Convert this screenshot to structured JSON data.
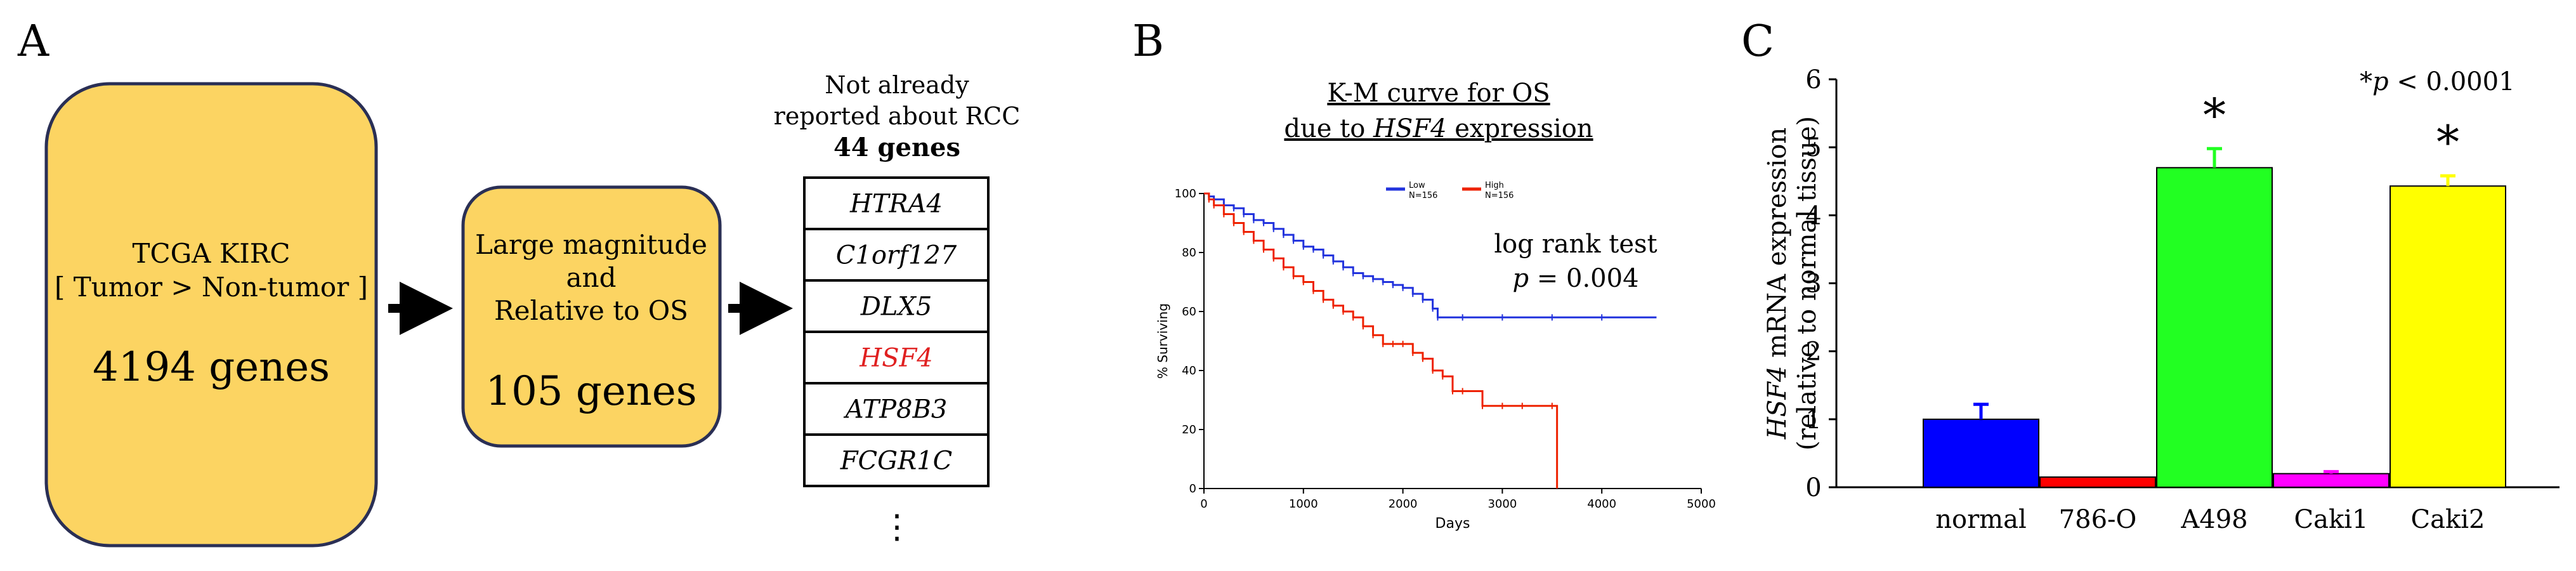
{
  "panel_a": {
    "label": "A",
    "box1": {
      "line1": "TCGA KIRC",
      "line2": "[ Tumor > Non-tumor ]",
      "count": "4194 genes"
    },
    "box2": {
      "line1": "Large magnitude",
      "line2": "and",
      "line3": "Relative to OS",
      "count": "105 genes"
    },
    "list_header": {
      "line1": "Not already",
      "line2": "reported about RCC",
      "count": "44 genes"
    },
    "genes": [
      "HTRA4",
      "C1orf127",
      "DLX5",
      "HSF4",
      "ATP8B3",
      "FCGR1C"
    ],
    "highlight_gene": "HSF4",
    "ellipsis": "⋮",
    "colors": {
      "box_fill": "#fcd462",
      "box_stroke": "#2a2f55",
      "highlight": "#e02020"
    }
  },
  "chart_data": [
    {
      "type": "line",
      "panel": "B",
      "title_line1": "K-M curve for OS",
      "title_line2_prefix": "due to ",
      "title_line2_gene": "HSF4",
      "title_line2_suffix": " expression",
      "xlabel": "Days",
      "ylabel": "% Surviving",
      "xlim": [
        0,
        5000
      ],
      "ylim": [
        0,
        100
      ],
      "xticks": [
        0,
        1000,
        2000,
        3000,
        4000,
        5000
      ],
      "yticks": [
        0,
        20,
        40,
        60,
        80,
        100
      ],
      "legend": [
        {
          "name": "Low",
          "n": "N=156",
          "color": "#2233dd"
        },
        {
          "name": "High",
          "n": "N=156",
          "color": "#ee2200"
        }
      ],
      "annotation_line1": "log rank test",
      "annotation_line2": "p = 0.004",
      "series": [
        {
          "name": "Low",
          "color": "#2233dd",
          "points": [
            [
              0,
              100
            ],
            [
              50,
              99
            ],
            [
              100,
              98
            ],
            [
              200,
              96
            ],
            [
              300,
              95
            ],
            [
              400,
              93
            ],
            [
              500,
              91
            ],
            [
              600,
              90
            ],
            [
              700,
              88
            ],
            [
              800,
              86
            ],
            [
              900,
              84
            ],
            [
              1000,
              82
            ],
            [
              1100,
              81
            ],
            [
              1200,
              79
            ],
            [
              1300,
              77
            ],
            [
              1400,
              75
            ],
            [
              1500,
              73
            ],
            [
              1600,
              72
            ],
            [
              1700,
              71
            ],
            [
              1800,
              70
            ],
            [
              1900,
              69
            ],
            [
              2000,
              68
            ],
            [
              2100,
              66
            ],
            [
              2200,
              64
            ],
            [
              2300,
              61
            ],
            [
              2350,
              58
            ],
            [
              2600,
              58
            ],
            [
              3000,
              58
            ],
            [
              3500,
              58
            ],
            [
              4000,
              58
            ],
            [
              4550,
              58
            ]
          ]
        },
        {
          "name": "High",
          "color": "#ee2200",
          "points": [
            [
              0,
              100
            ],
            [
              50,
              98
            ],
            [
              100,
              96
            ],
            [
              200,
              93
            ],
            [
              300,
              90
            ],
            [
              400,
              87
            ],
            [
              500,
              84
            ],
            [
              600,
              81
            ],
            [
              700,
              78
            ],
            [
              800,
              75
            ],
            [
              900,
              72
            ],
            [
              1000,
              70
            ],
            [
              1100,
              67
            ],
            [
              1200,
              64
            ],
            [
              1300,
              62
            ],
            [
              1400,
              60
            ],
            [
              1500,
              58
            ],
            [
              1600,
              55
            ],
            [
              1700,
              52
            ],
            [
              1800,
              49
            ],
            [
              1900,
              49
            ],
            [
              2000,
              49
            ],
            [
              2100,
              46
            ],
            [
              2200,
              44
            ],
            [
              2300,
              40
            ],
            [
              2400,
              38
            ],
            [
              2500,
              33
            ],
            [
              2600,
              33
            ],
            [
              2800,
              28
            ],
            [
              3000,
              28
            ],
            [
              3200,
              28
            ],
            [
              3500,
              28
            ],
            [
              3550,
              0
            ]
          ]
        }
      ]
    },
    {
      "type": "bar",
      "panel": "C",
      "ylabel_gene": "HSF4",
      "ylabel_rest": " mRNA expression",
      "ylabel_line2": "(relative to normal tissue)",
      "ylim": [
        0,
        6
      ],
      "yticks": [
        0,
        1,
        2,
        3,
        4,
        5,
        6
      ],
      "categories": [
        "normal",
        "786-O",
        "A498",
        "Caki1",
        "Caki2"
      ],
      "values": [
        1.0,
        0.15,
        4.7,
        0.2,
        4.43
      ],
      "errors": [
        0.22,
        0.0,
        0.28,
        0.03,
        0.15
      ],
      "colors": [
        "#0000ff",
        "#ff0000",
        "#22ff22",
        "#ff00ff",
        "#ffff00"
      ],
      "significance": [
        "",
        "",
        "*",
        "",
        "*"
      ],
      "annotation": "*p < 0.0001"
    }
  ]
}
